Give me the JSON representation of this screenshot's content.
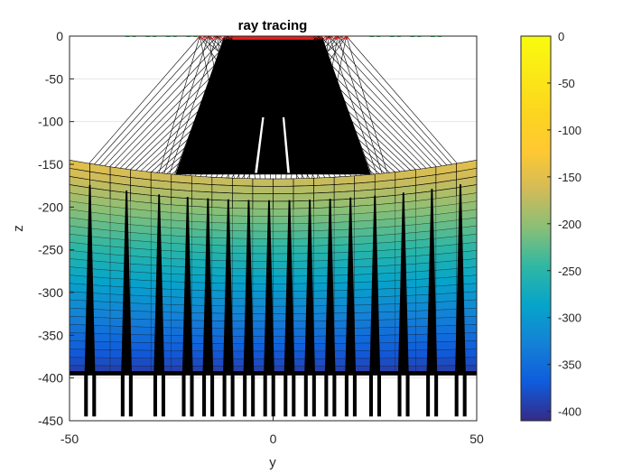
{
  "chart_data": {
    "type": "heatmap",
    "title": "ray tracing",
    "xlabel": "y",
    "ylabel": "z",
    "xlim": [
      -50,
      50
    ],
    "ylim": [
      -450,
      0
    ],
    "x_ticks": [
      "-50",
      "0",
      "50"
    ],
    "y_ticks": [
      "0",
      "-50",
      "-100",
      "-150",
      "-200",
      "-250",
      "-300",
      "-350",
      "-400",
      "-450"
    ],
    "grid": true,
    "colormap": "parula",
    "colorbar": {
      "placement": "right",
      "range": [
        -410,
        0
      ],
      "ticks": [
        "0",
        "-50",
        "-100",
        "-150",
        "-200",
        "-250",
        "-300",
        "-350",
        "-400"
      ]
    },
    "surface": {
      "top_edge_z_at_x_minus_50": -145,
      "top_edge_z_at_x_0": -167,
      "top_edge_z_at_x_50": -145,
      "bottom_z": -395
    },
    "sources": {
      "marker": "red-star",
      "color": "#e0201b",
      "z": 0,
      "x_min": -18,
      "x_max": 18
    },
    "receivers": {
      "marker": "green-dash",
      "color": "#22b14c",
      "z": 0,
      "x_positions": [
        -35,
        -30,
        -25,
        -20,
        25,
        30,
        35,
        40
      ]
    },
    "ray_bundles_x": [
      -45,
      -36,
      -28,
      -21,
      -16,
      -11,
      -6,
      -1,
      4,
      9,
      14,
      19,
      25,
      32,
      39,
      46
    ]
  }
}
